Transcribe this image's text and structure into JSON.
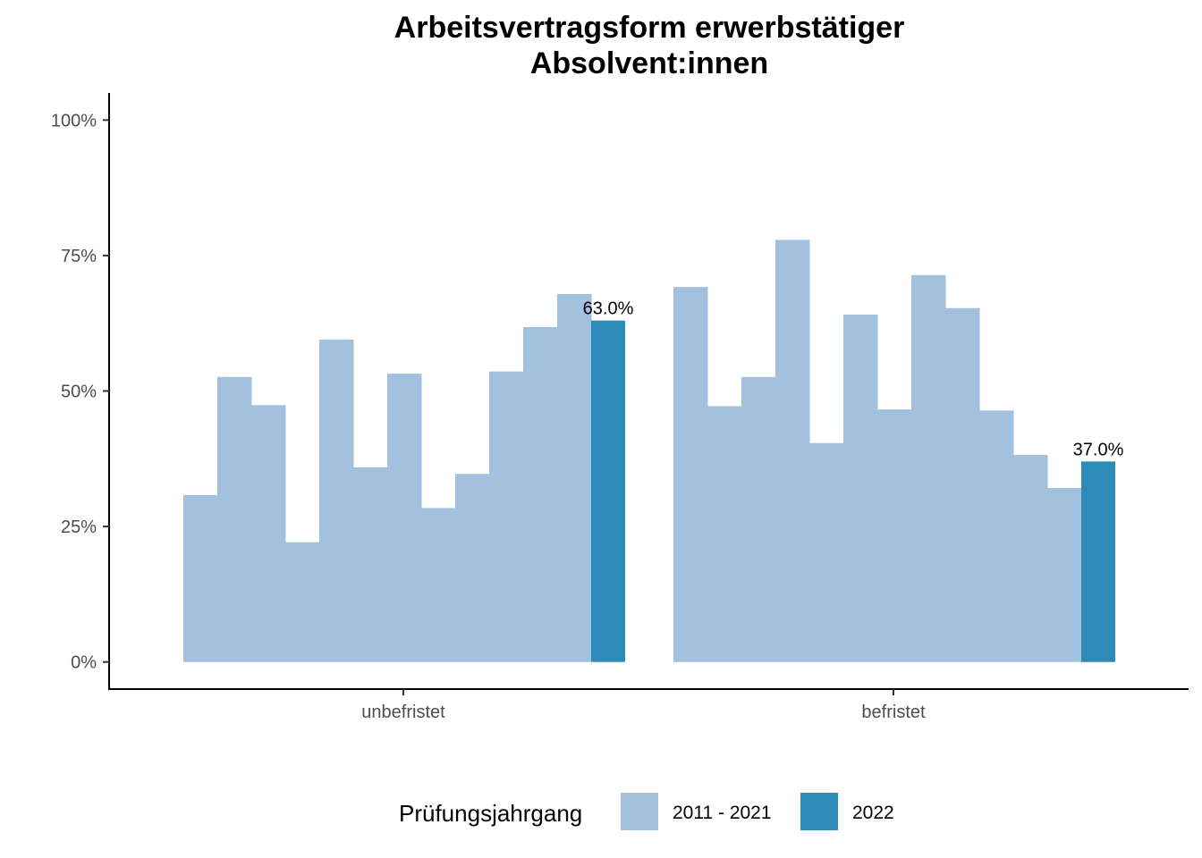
{
  "chart_data": {
    "type": "bar",
    "title_lines": [
      "Arbeitsvertragsform erwerbstätiger",
      "Absolvent:innen"
    ],
    "categories": [
      "unbefristet",
      "befristet"
    ],
    "y_ticks": [
      {
        "value": 0,
        "label": "0%"
      },
      {
        "value": 25,
        "label": "25%"
      },
      {
        "value": 50,
        "label": "50%"
      },
      {
        "value": 75,
        "label": "75%"
      },
      {
        "value": 100,
        "label": "100%"
      }
    ],
    "ylim": [
      -5,
      105
    ],
    "grid": false,
    "legend": {
      "title": "Prüfungsjahrgang",
      "position": "bottom",
      "items": [
        {
          "label": "2011 - 2021",
          "color": "#a1c1de"
        },
        {
          "label": "2022",
          "color": "#2e8bb7"
        }
      ]
    },
    "groups": [
      {
        "category": "unbefristet",
        "history_values": [
          30.8,
          52.6,
          47.4,
          22.1,
          59.5,
          35.9,
          53.2,
          28.4,
          34.7,
          53.6,
          61.8,
          67.9
        ],
        "current_value": 63.0,
        "current_label": "63.0%"
      },
      {
        "category": "befristet",
        "history_values": [
          69.2,
          47.2,
          52.6,
          77.9,
          40.4,
          64.1,
          46.6,
          71.4,
          65.3,
          46.4,
          38.2,
          32.1
        ],
        "current_value": 37.0,
        "current_label": "37.0%"
      }
    ]
  }
}
